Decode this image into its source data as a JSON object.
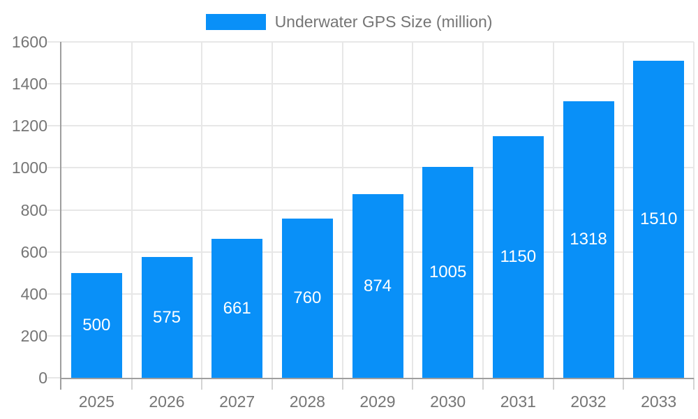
{
  "chart_data": {
    "type": "bar",
    "title": "Underwater GPS Size (million)",
    "categories": [
      "2025",
      "2026",
      "2027",
      "2028",
      "2029",
      "2030",
      "2031",
      "2032",
      "2033"
    ],
    "values": [
      500,
      575,
      661,
      760,
      874,
      1005,
      1150,
      1318,
      1510
    ],
    "series": [
      {
        "name": "Underwater GPS Size (million)",
        "values": [
          500,
          575,
          661,
          760,
          874,
          1005,
          1150,
          1318,
          1510
        ]
      }
    ],
    "xlabel": "",
    "ylabel": "",
    "ylim": [
      0,
      1600
    ],
    "yticks": [
      0,
      200,
      400,
      600,
      800,
      1000,
      1200,
      1400,
      1600
    ],
    "grid": true,
    "legend_position": "top-center",
    "value_labels": "inside-center-white"
  },
  "legend": {
    "label": "Underwater GPS Size (million)",
    "swatch_color": "#0990f8"
  },
  "colors": {
    "bar": "#0990f8",
    "value_label": "#ffffff",
    "axis_text": "#757575",
    "gridline": "#e7e7e7",
    "axis_line": "#9e9e9e",
    "tick": "#d4d4d4",
    "background": "#ffffff"
  }
}
